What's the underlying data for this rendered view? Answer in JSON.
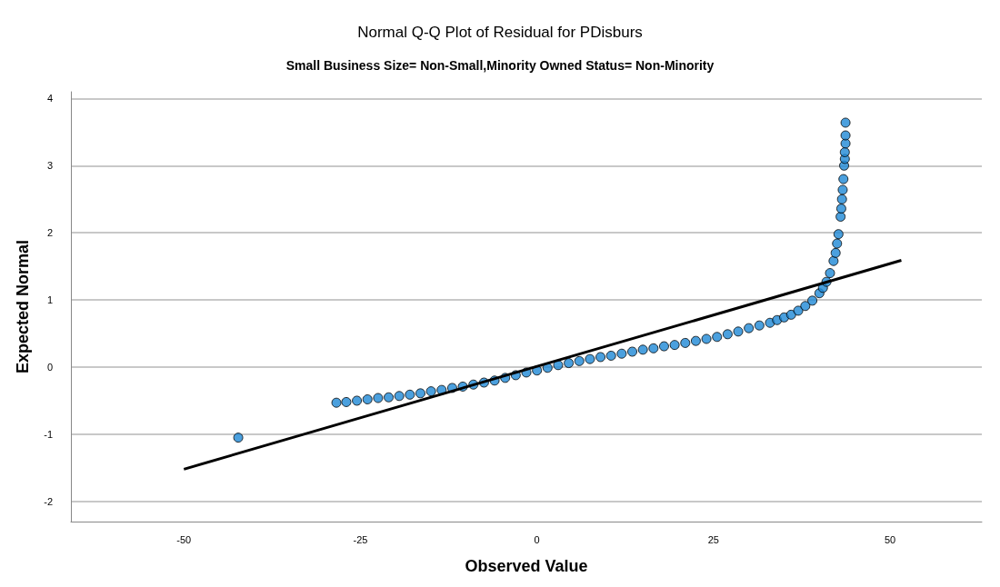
{
  "chart_data": {
    "type": "scatter",
    "title": "Normal Q-Q Plot of Residual for PDisburs",
    "subtitle": "Small Business Size= Non-Small,Minority Owned Status= Non-Minority",
    "xlabel": "Observed Value",
    "ylabel": "Expected Normal",
    "xlim": [
      -66,
      63
    ],
    "xticks": [
      -50,
      -25,
      0,
      25,
      50
    ],
    "ylim": [
      -2.3,
      4.1
    ],
    "yticks": [
      -2,
      -1,
      0,
      1,
      2,
      3,
      4
    ],
    "grid": "y",
    "marker": "circle",
    "series": [
      {
        "color": "#1e88d6",
        "x": [
          -42.3,
          -28.4,
          -27,
          -25.5,
          -24,
          -22.5,
          -21,
          -19.5,
          -18,
          -16.5,
          -15,
          -13.5,
          -12,
          -10.5,
          -9,
          -7.5,
          -6,
          -4.5,
          -3,
          -1.5,
          0,
          1.5,
          3,
          4.5,
          6,
          7.5,
          9,
          10.5,
          12,
          13.5,
          15,
          16.5,
          18,
          19.5,
          21,
          22.5,
          24,
          25.5,
          27,
          28.5,
          30,
          31.5,
          33,
          34,
          35,
          36,
          37,
          38,
          39,
          40,
          40.5,
          41,
          41.5,
          42,
          42.3,
          42.5,
          42.7,
          43,
          43.1,
          43.2,
          43.3,
          43.4,
          43.5,
          43.6,
          43.6,
          43.7,
          43.7,
          43.7
        ],
        "values": [
          -1.05,
          -0.53,
          -0.52,
          -0.5,
          -0.48,
          -0.46,
          -0.45,
          -0.43,
          -0.41,
          -0.39,
          -0.36,
          -0.34,
          -0.31,
          -0.29,
          -0.26,
          -0.23,
          -0.2,
          -0.16,
          -0.12,
          -0.08,
          -0.05,
          -0.01,
          0.03,
          0.06,
          0.09,
          0.12,
          0.15,
          0.17,
          0.2,
          0.23,
          0.26,
          0.28,
          0.31,
          0.33,
          0.36,
          0.39,
          0.42,
          0.45,
          0.49,
          0.53,
          0.58,
          0.62,
          0.66,
          0.7,
          0.74,
          0.78,
          0.84,
          0.91,
          0.99,
          1.1,
          1.18,
          1.27,
          1.4,
          1.58,
          1.7,
          1.84,
          1.98,
          2.24,
          2.36,
          2.5,
          2.64,
          2.8,
          3.0,
          3.1,
          3.2,
          3.33,
          3.45,
          3.64
        ]
      },
      {
        "type": "line",
        "color": "#000000",
        "marker": "none",
        "x": [
          -50,
          51.6
        ],
        "values": [
          -1.52,
          1.59
        ]
      }
    ]
  }
}
